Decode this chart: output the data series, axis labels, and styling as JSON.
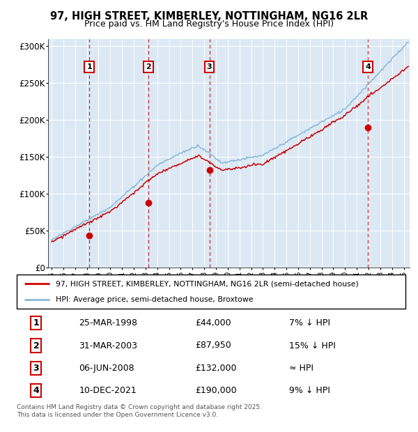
{
  "title_line1": "97, HIGH STREET, KIMBERLEY, NOTTINGHAM, NG16 2LR",
  "title_line2": "Price paid vs. HM Land Registry's House Price Index (HPI)",
  "bg_color": "#dce9f5",
  "ylim": [
    0,
    310000
  ],
  "yticks": [
    0,
    50000,
    100000,
    150000,
    200000,
    250000,
    300000
  ],
  "ytick_labels": [
    "£0",
    "£50K",
    "£100K",
    "£150K",
    "£200K",
    "£250K",
    "£300K"
  ],
  "xlim_start": 1994.7,
  "xlim_end": 2025.5,
  "sale_dates_num": [
    1998.23,
    2003.25,
    2008.44,
    2021.94
  ],
  "sale_prices": [
    44000,
    87950,
    132000,
    190000
  ],
  "sale_labels": [
    "1",
    "2",
    "3",
    "4"
  ],
  "red_line_color": "#cc0000",
  "blue_line_color": "#88b8d8",
  "sale_marker_color": "#cc0000",
  "vline_color": "#cc0000",
  "legend_line1": "97, HIGH STREET, KIMBERLEY, NOTTINGHAM, NG16 2LR (semi-detached house)",
  "legend_line2": "HPI: Average price, semi-detached house, Broxtowe",
  "table_data": [
    [
      "1",
      "25-MAR-1998",
      "£44,000",
      "7% ↓ HPI"
    ],
    [
      "2",
      "31-MAR-2003",
      "£87,950",
      "15% ↓ HPI"
    ],
    [
      "3",
      "06-JUN-2008",
      "£132,000",
      "≈ HPI"
    ],
    [
      "4",
      "10-DEC-2021",
      "£190,000",
      "9% ↓ HPI"
    ]
  ],
  "footer_text": "Contains HM Land Registry data © Crown copyright and database right 2025.\nThis data is licensed under the Open Government Licence v3.0."
}
